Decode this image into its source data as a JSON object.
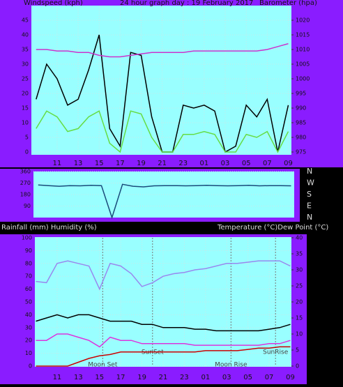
{
  "chart_data": [
    {
      "type": "line",
      "title": "24 hour graph day : 19 February 2017",
      "y_label": "Windspeed (kph)",
      "y2_label": "Barometer (hpa)",
      "x": [
        9,
        10,
        11,
        12,
        13,
        14,
        15,
        16,
        17,
        18,
        19,
        20,
        21,
        22,
        23,
        24,
        25,
        26,
        27,
        28,
        29,
        30,
        31,
        32,
        33
      ],
      "xlim": [
        8.55,
        33.3
      ],
      "xticks": [
        11,
        13,
        15,
        17,
        19,
        21,
        23,
        {
          "value": 25,
          "label": "01"
        },
        {
          "value": 27,
          "label": "03"
        },
        {
          "value": 29,
          "label": "05"
        },
        {
          "value": 31,
          "label": "07"
        },
        {
          "value": 33,
          "label": "09"
        }
      ],
      "ylim": [
        0,
        50
      ],
      "yticks": [
        0,
        5,
        10,
        15,
        20,
        25,
        30,
        35,
        40,
        45
      ],
      "y2lim": [
        975,
        1025
      ],
      "y2ticks": [
        975,
        980,
        985,
        990,
        995,
        1000,
        1005,
        1010,
        1015,
        1020
      ],
      "grid": true,
      "series": [
        {
          "color": "#000000",
          "values": [
            18,
            30,
            25,
            16,
            18,
            28,
            40,
            8,
            2,
            34,
            33,
            12,
            0,
            0,
            16,
            15,
            16,
            14,
            0,
            2,
            16,
            12,
            18,
            0,
            16
          ]
        },
        {
          "color": "#66dd44",
          "values": [
            8,
            14,
            12,
            7,
            8,
            12,
            14,
            3,
            0,
            14,
            13,
            5,
            0,
            0,
            6,
            6,
            7,
            6,
            0,
            0,
            6,
            5,
            7,
            0,
            7
          ]
        },
        {
          "color": "#cc33cc",
          "axis": "y2",
          "values": [
            1010,
            1010,
            1009.5,
            1009.5,
            1009,
            1009,
            1008,
            1007.5,
            1007.5,
            1008,
            1008.5,
            1009,
            1009,
            1009,
            1009,
            1009.5,
            1009.5,
            1009.5,
            1009.5,
            1009.5,
            1009.5,
            1009.5,
            1010,
            1011,
            1012
          ]
        }
      ]
    },
    {
      "type": "line",
      "direction_labels": [
        "N",
        "W",
        "S",
        "E",
        "N"
      ],
      "x": [
        9,
        10,
        11,
        12,
        13,
        14,
        15,
        16,
        17,
        18,
        19,
        20,
        21,
        22,
        23,
        24,
        25,
        26,
        27,
        28,
        29,
        30,
        31,
        32,
        33
      ],
      "xlim": [
        8.55,
        33.3
      ],
      "ylim": [
        0,
        360
      ],
      "yticks": [
        90,
        180,
        270,
        360
      ],
      "grid": true,
      "series": [
        {
          "color": "#1a4a7a",
          "values": [
            255,
            250,
            245,
            250,
            248,
            252,
            250,
            0,
            260,
            245,
            240,
            248,
            250,
            250,
            248,
            250,
            252,
            250,
            248,
            250,
            252,
            248,
            250,
            250,
            248
          ]
        }
      ]
    },
    {
      "type": "line",
      "y_label": "Rainfall (mm)  Humidity (%)",
      "y2_label": "Temperature (°C)Dew Point (°C)",
      "x": [
        9,
        10,
        11,
        12,
        13,
        14,
        15,
        16,
        17,
        18,
        19,
        20,
        21,
        22,
        23,
        24,
        25,
        26,
        27,
        28,
        29,
        30,
        31,
        32,
        33
      ],
      "xlim": [
        8.9,
        33.1
      ],
      "xticks": [
        11,
        13,
        15,
        17,
        19,
        21,
        23,
        {
          "value": 25,
          "label": "01"
        },
        {
          "value": 27,
          "label": "03"
        },
        {
          "value": 29,
          "label": "05"
        },
        {
          "value": 31,
          "label": "07"
        },
        {
          "value": 33,
          "label": "09"
        }
      ],
      "ylim": [
        0,
        100
      ],
      "yticks": [
        0,
        10,
        20,
        30,
        40,
        50,
        60,
        70,
        80,
        90,
        100
      ],
      "y2lim": [
        0,
        40
      ],
      "y2ticks": [
        0,
        5,
        10,
        15,
        20,
        25,
        30,
        35,
        40
      ],
      "grid": true,
      "series": [
        {
          "color": "#9988ee",
          "values": [
            66,
            65,
            80,
            82,
            80,
            78,
            60,
            80,
            78,
            72,
            62,
            65,
            70,
            72,
            73,
            75,
            76,
            78,
            80,
            80,
            81,
            82,
            82,
            82,
            78
          ]
        },
        {
          "color": "#000000",
          "axis": "y2",
          "values": [
            14,
            15,
            16,
            15,
            16,
            16,
            15,
            14,
            14,
            14,
            13,
            13,
            12,
            12,
            12,
            11.5,
            11.5,
            11,
            11,
            11,
            11,
            11,
            11.5,
            12,
            13
          ]
        },
        {
          "color": "#dd33dd",
          "axis": "y2",
          "values": [
            8,
            8,
            10,
            10,
            9,
            8,
            6,
            9,
            8,
            8,
            7,
            7,
            7,
            7,
            7,
            6.5,
            6.5,
            6.5,
            6.5,
            6.5,
            6.5,
            6.5,
            7,
            7,
            8
          ]
        },
        {
          "color": "#cc0000",
          "values": [
            0,
            0,
            0,
            0,
            3,
            6,
            8,
            9,
            11,
            11,
            11,
            11,
            11,
            11,
            11,
            11,
            12,
            12,
            12,
            12,
            13,
            14,
            14,
            15,
            15
          ]
        }
      ],
      "annotations": [
        {
          "text": "Moon Set",
          "x": 15.3
        },
        {
          "text": "SunSet",
          "x": 20
        },
        {
          "text": "Moon Rise",
          "x": 27.4
        },
        {
          "text": "SunRise",
          "x": 31.6
        }
      ]
    }
  ]
}
